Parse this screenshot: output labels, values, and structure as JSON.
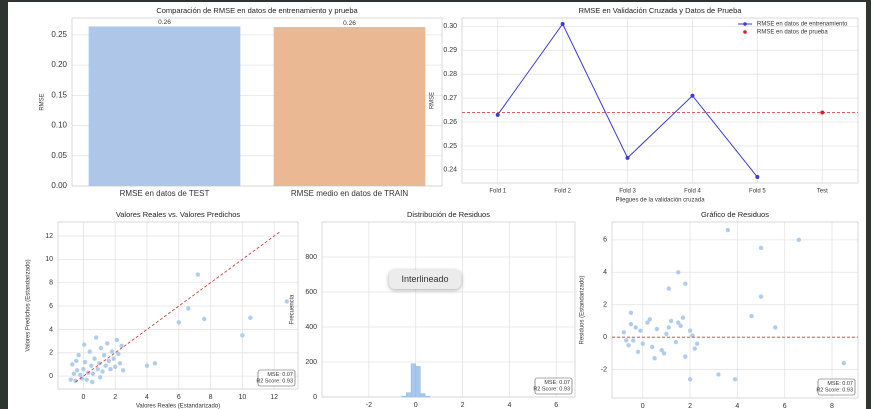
{
  "chart_data": [
    {
      "type": "bar",
      "title": "Comparación de RMSE en datos de entrenamiento y prueba",
      "ylabel": "RMSE",
      "categories": [
        "RMSE en datos de TEST",
        "RMSE medio en datos de TRAIN"
      ],
      "values": [
        0.264,
        0.263
      ],
      "value_labels": [
        "0.26",
        "0.26"
      ],
      "colors": [
        "#aec7e8",
        "#eab892"
      ],
      "ylim": [
        0,
        0.278
      ],
      "yticks": [
        {
          "value": 0,
          "label": "0.00"
        },
        0.05,
        {
          "value": 0.1,
          "label": "0.10"
        },
        0.15,
        {
          "value": 0.2,
          "label": "0.20"
        },
        0.25
      ],
      "grid": true
    },
    {
      "type": "line",
      "title": "RMSE en Validación Cruzada y Datos de Prueba",
      "xlabel": "Pliegues de la validación cruzada",
      "ylabel": "RMSE",
      "categories": [
        "Fold 1",
        "Fold 2",
        "Fold 3",
        "Fold 4",
        "Fold 5",
        "Test"
      ],
      "series": [
        {
          "name": "RMSE en datos de entrenamiento",
          "color": "#3b3bdc",
          "mode": "lines+markers",
          "values": [
            0.263,
            0.301,
            0.245,
            0.271,
            0.237,
            null
          ]
        },
        {
          "name": "RMSE en datos de prueba",
          "color": "#e02020",
          "mode": "markers",
          "values": [
            null,
            null,
            null,
            null,
            null,
            0.264
          ]
        }
      ],
      "hline": {
        "value": 0.264,
        "color": "#e04848"
      },
      "ylim": [
        0.2345,
        0.3035
      ],
      "yticks": [
        0.24,
        0.25,
        0.26,
        0.27,
        0.28,
        0.29,
        {
          "value": 0.3,
          "label": "0.30"
        }
      ],
      "grid": true,
      "legend": "upper right"
    },
    {
      "type": "scatter",
      "title": "Valores Reales vs. Valores Predichos",
      "xlabel": "Valores Reales (Estandarizado)",
      "ylabel": "Valores Predichos (Estandarizado)",
      "color": "#a6c8ec",
      "x": [
        -0.8,
        -0.6,
        -0.5,
        -0.4,
        -0.3,
        -0.2,
        -0.1,
        0,
        0.1,
        0.2,
        0.3,
        0.4,
        0.5,
        0.6,
        0.7,
        0.8,
        0.9,
        1,
        1.1,
        1.2,
        1.3,
        1.4,
        1.5,
        1.6,
        1.7,
        1.8,
        1.9,
        2,
        2.1,
        2.2,
        2.3,
        2.4,
        2.5,
        -0.7,
        0.05,
        1.05,
        -0.45,
        0.55,
        4,
        4.5,
        6,
        6.6,
        7.2,
        7.6,
        10,
        10.5,
        12.8
      ],
      "y": [
        -0.3,
        0.2,
        -0.4,
        0.5,
        1.8,
        0.1,
        -0.2,
        0.6,
        1.2,
        -0.3,
        0.3,
        2.1,
        0.9,
        0.2,
        1.5,
        3.3,
        0.6,
        1.1,
        2.4,
        0.4,
        1.8,
        0.9,
        2.8,
        1.3,
        0.6,
        2.1,
        1.5,
        0.8,
        3.1,
        1.9,
        1.1,
        2.6,
        0.5,
        1,
        2.7,
        -0.1,
        1.3,
        -0.5,
        0.9,
        1.1,
        4.6,
        5.8,
        8.7,
        4.9,
        3.5,
        5,
        6.4
      ],
      "reference_line": {
        "x": [
          -0.5,
          12.4
        ],
        "y": [
          -0.5,
          12.4
        ],
        "color": "#d04040"
      },
      "annotation": [
        "MSE: 0.07",
        "R2 Score: 0.93"
      ],
      "xlim": [
        -1.6,
        13.5
      ],
      "ylim": [
        -1.1,
        13.2
      ],
      "xticks": [
        0,
        2,
        4,
        6,
        8,
        10,
        12
      ],
      "yticks": [
        0,
        2,
        4,
        6,
        8,
        10,
        12
      ],
      "grid": true
    },
    {
      "type": "hist",
      "title": "Distribución de Residuos",
      "xlabel": "Residuos (Estandarizado)",
      "ylabel": "Frecuencia",
      "color": "#a6c8ec",
      "bins": [
        -0.6,
        -0.4,
        -0.2,
        0,
        0.2,
        0.4,
        0.6
      ],
      "counts": [
        4,
        25,
        190,
        175,
        20,
        4
      ],
      "annotation": [
        "MSE: 0.07",
        "R2 Score: 0.93"
      ],
      "xlim": [
        -4,
        6.8
      ],
      "ylim": [
        0,
        1000
      ],
      "xticks": [
        -2,
        0,
        2,
        4,
        6
      ],
      "yticks": [
        0,
        200,
        400,
        600,
        800
      ],
      "grid": true
    },
    {
      "type": "scatter",
      "title": "Gráfico de Residuos",
      "xlabel": "Valores Predichos (Estandarizado)",
      "ylabel": "Residuos (Estandarizado)",
      "color": "#a6c8ec",
      "x": [
        -0.8,
        -0.6,
        -0.5,
        -0.4,
        -0.3,
        -0.2,
        -0.1,
        0,
        0.2,
        0.4,
        0.6,
        0.8,
        1,
        1.2,
        1.4,
        1.6,
        1.8,
        2,
        2.2,
        -0.7,
        0.3,
        0.9,
        1.5,
        2.1,
        -0.5,
        0.5,
        1.1,
        1.7,
        2.3,
        1.1,
        1.5,
        1.8,
        2,
        3.2,
        3.9,
        3.6,
        4.6,
        5,
        5,
        5.6,
        6.6,
        8.5
      ],
      "y": [
        0.3,
        -0.5,
        0.8,
        -0.2,
        0.6,
        -0.9,
        0.4,
        -0.4,
        0.9,
        -0.6,
        0.5,
        -0.8,
        0.2,
        1,
        -0.3,
        0.7,
        -1.2,
        0.4,
        -0.7,
        -0.2,
        1.1,
        -1,
        0.9,
        0.1,
        1.5,
        -1.3,
        0.6,
        1.2,
        -0.4,
        3,
        4,
        3.3,
        -2.6,
        -2.3,
        -2.6,
        6.6,
        1.3,
        2.5,
        5.5,
        0.6,
        6,
        -1.6
      ],
      "hline": {
        "value": 0,
        "color": "#d04040"
      },
      "annotation": [
        "MSE: 0.07",
        "R2 Score: 0.93"
      ],
      "xlim": [
        -1.3,
        9.1
      ],
      "ylim": [
        -3.75,
        7.1
      ],
      "xticks": [
        0,
        2,
        4,
        6,
        8
      ],
      "yticks": [
        -2,
        0,
        2,
        4,
        6
      ],
      "grid": true
    }
  ],
  "tooltip": "Interlineado"
}
